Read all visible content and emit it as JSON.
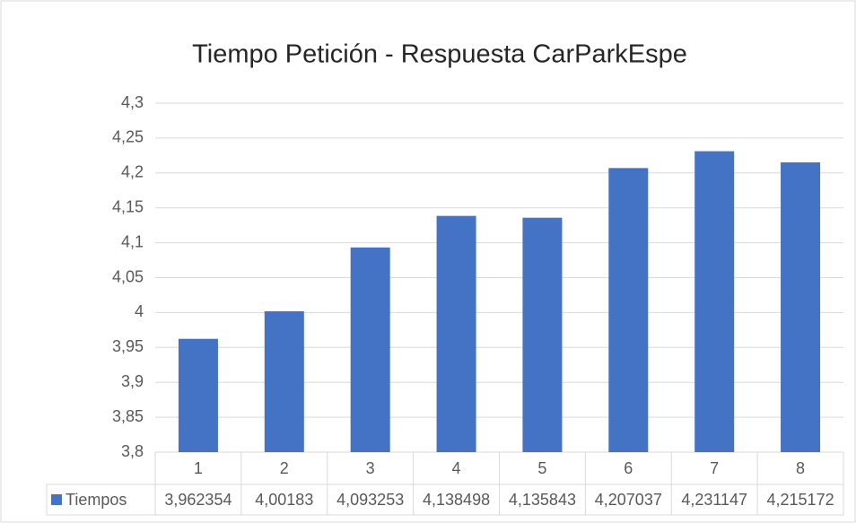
{
  "chart_data": {
    "type": "bar",
    "title": "Tiempo Petición - Respuesta CarParkEspe",
    "categories": [
      "1",
      "2",
      "3",
      "4",
      "5",
      "6",
      "7",
      "8"
    ],
    "series": [
      {
        "name": "Tiempos",
        "color": "#4472c4",
        "values": [
          3.962354,
          4.00183,
          4.093253,
          4.138498,
          4.135843,
          4.207037,
          4.231147,
          4.215172
        ],
        "value_labels": [
          "3,962354",
          "4,00183",
          "4,093253",
          "4,138498",
          "4,135843",
          "4,207037",
          "4,231147",
          "4,215172"
        ]
      }
    ],
    "ylim": [
      3.8,
      4.3
    ],
    "yticks": [
      {
        "value": 3.8,
        "label": "3,8"
      },
      {
        "value": 3.85,
        "label": "3,85"
      },
      {
        "value": 3.9,
        "label": "3,9"
      },
      {
        "value": 3.95,
        "label": "3,95"
      },
      4,
      {
        "value": 4.05,
        "label": "4,05"
      },
      {
        "value": 4.1,
        "label": "4,1"
      },
      {
        "value": 4.15,
        "label": "4,15"
      },
      {
        "value": 4.2,
        "label": "4,2"
      },
      {
        "value": 4.25,
        "label": "4,25"
      },
      {
        "value": 4.3,
        "label": "4,3"
      }
    ],
    "grid": true,
    "data_table": true
  }
}
